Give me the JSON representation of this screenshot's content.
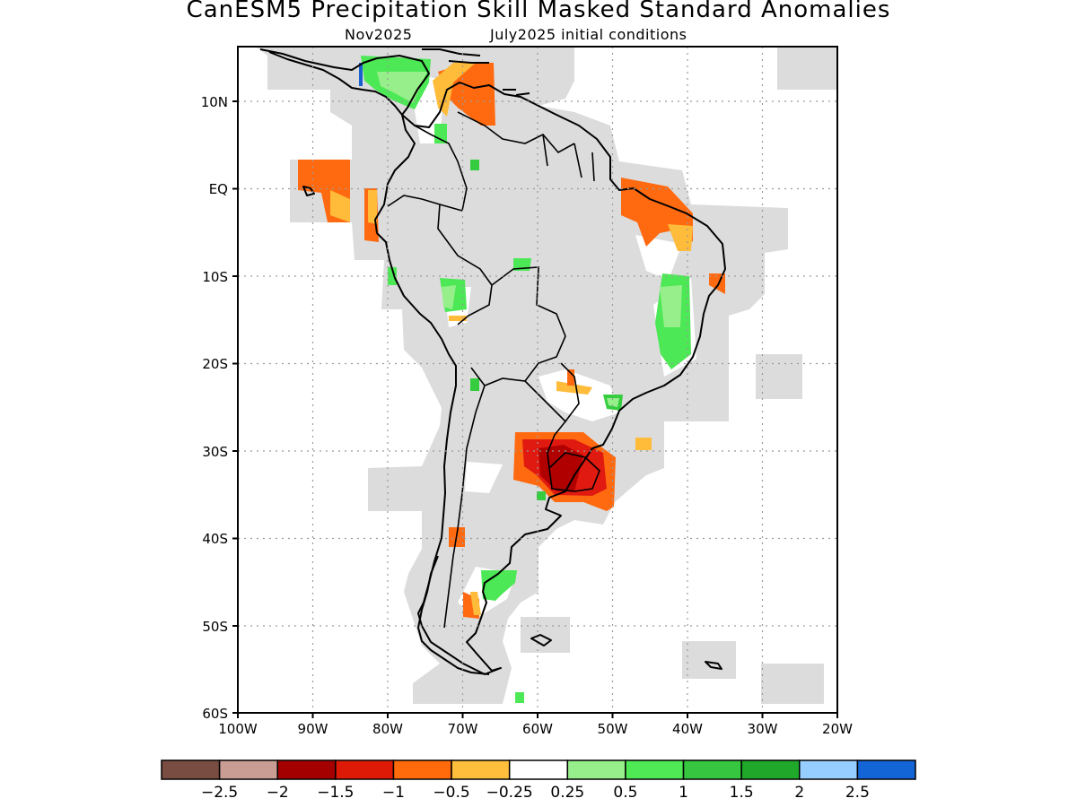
{
  "title": "CanESM5 Precipitation Skill Masked Standard Anomalies",
  "subtitle_left": "Nov2025",
  "subtitle_right": "July2025 initial conditions",
  "colors": {
    "land_gray": "#dcdcdc",
    "coast": "#000000",
    "grid": "#9a9a9a",
    "orange": "#ff6a10",
    "red": "#e01a10",
    "darkred": "#b00000",
    "lightorange": "#ffbb3a",
    "lightgreen": "#96ef8a",
    "green": "#4ce855",
    "midgreen": "#35cc3f",
    "darkgreen": "#1faa28",
    "blue": "#1a5fd0"
  },
  "axes": {
    "y_ticks": [
      "10N",
      "EQ",
      "10S",
      "20S",
      "30S",
      "40S",
      "50S",
      "60S"
    ],
    "x_ticks": [
      "100W",
      "90W",
      "80W",
      "70W",
      "60W",
      "50W",
      "40W",
      "30W",
      "20W"
    ]
  },
  "colorbar": {
    "colors": [
      "#7a4d43",
      "#c99d93",
      "#a40000",
      "#dd1a05",
      "#ff6a0a",
      "#ffbf3c",
      "#ffffff",
      "#96ef8a",
      "#4ee954",
      "#36c63f",
      "#1fa82a",
      "#96cfff",
      "#1364d4"
    ],
    "labels": [
      "−2.5",
      "−2",
      "−1.5",
      "−1",
      "−0.5",
      "−0.25",
      "0.25",
      "0.5",
      "1",
      "1.5",
      "2",
      "2.5"
    ]
  }
}
